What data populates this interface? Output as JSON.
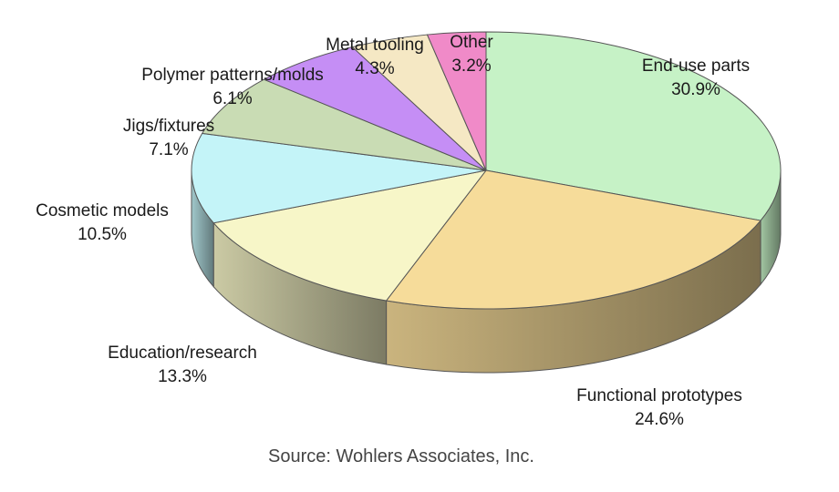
{
  "chart_data": {
    "type": "pie",
    "style": "3d",
    "start": "12 o'clock",
    "direction": "clockwise",
    "slices": [
      {
        "label": "End-use parts",
        "value": 30.9,
        "display": "30.9%",
        "color": "#c6f2c6"
      },
      {
        "label": "Functional prototypes",
        "value": 24.6,
        "display": "24.6%",
        "color": "#f6dc9a"
      },
      {
        "label": "Education/research",
        "value": 13.3,
        "display": "13.3%",
        "color": "#f7f6c8"
      },
      {
        "label": "Cosmetic models",
        "value": 10.5,
        "display": "10.5%",
        "color": "#c4f4f8"
      },
      {
        "label": "Jigs/fixtures",
        "value": 7.1,
        "display": "7.1%",
        "color": "#c9dcb4"
      },
      {
        "label": "Polymer patterns/molds",
        "value": 6.1,
        "display": "6.1%",
        "color": "#c58ef5"
      },
      {
        "label": "Metal tooling",
        "value": 4.3,
        "display": "4.3%",
        "color": "#f5e8c4"
      },
      {
        "label": "Other",
        "value": 3.2,
        "display": "3.2%",
        "color": "#f08ac8"
      }
    ],
    "source": "Source: Wohlers Associates, Inc."
  }
}
